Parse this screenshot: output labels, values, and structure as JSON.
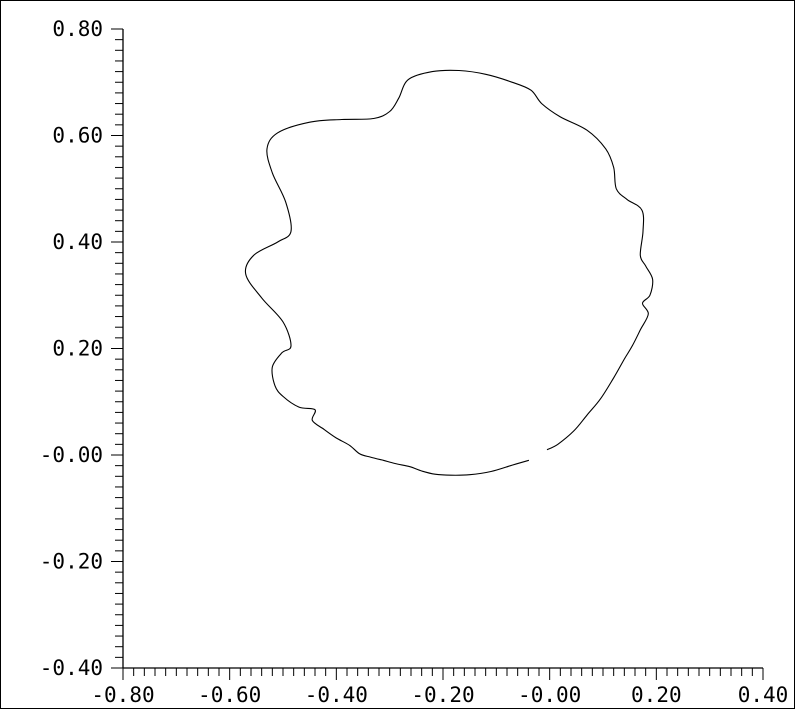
{
  "chart_data": {
    "type": "line",
    "title": "",
    "xlabel": "",
    "ylabel": "",
    "xlim": [
      -0.8,
      0.4
    ],
    "ylim": [
      -0.4,
      0.8
    ],
    "grid": false,
    "x_tick_labels": [
      "-0.80",
      "-0.60",
      "-0.40",
      "-0.20",
      "-0.00",
      "0.20",
      "0.40"
    ],
    "y_tick_labels": [
      "0.80",
      "0.60",
      "0.40",
      "0.20",
      "-0.00",
      "-0.20",
      "-0.40"
    ],
    "x_ticks": [
      -0.8,
      -0.6,
      -0.4,
      -0.2,
      0.0,
      0.2,
      0.4
    ],
    "y_ticks": [
      0.8,
      0.6,
      0.4,
      0.2,
      0.0,
      -0.2,
      -0.4
    ],
    "minor_tick_step": 0.02,
    "series": [
      {
        "points": [
          [
            -0.039,
            -0.01
          ],
          [
            -0.07,
            -0.019
          ],
          [
            -0.11,
            -0.031
          ],
          [
            -0.15,
            -0.037
          ],
          [
            -0.185,
            -0.038
          ],
          [
            -0.215,
            -0.036
          ],
          [
            -0.24,
            -0.03
          ],
          [
            -0.262,
            -0.022
          ],
          [
            -0.29,
            -0.016
          ],
          [
            -0.312,
            -0.01
          ],
          [
            -0.336,
            -0.004
          ],
          [
            -0.356,
            0.002
          ],
          [
            -0.375,
            0.018
          ],
          [
            -0.4,
            0.032
          ],
          [
            -0.423,
            0.048
          ],
          [
            -0.445,
            0.065
          ],
          [
            -0.44,
            0.085
          ],
          [
            -0.47,
            0.09
          ],
          [
            -0.5,
            0.11
          ],
          [
            -0.515,
            0.13
          ],
          [
            -0.52,
            0.165
          ],
          [
            -0.502,
            0.192
          ],
          [
            -0.485,
            0.205
          ],
          [
            -0.5,
            0.25
          ],
          [
            -0.54,
            0.295
          ],
          [
            -0.57,
            0.34
          ],
          [
            -0.555,
            0.375
          ],
          [
            -0.51,
            0.4
          ],
          [
            -0.485,
            0.42
          ],
          [
            -0.495,
            0.475
          ],
          [
            -0.52,
            0.53
          ],
          [
            -0.53,
            0.575
          ],
          [
            -0.51,
            0.605
          ],
          [
            -0.45,
            0.625
          ],
          [
            -0.39,
            0.63
          ],
          [
            -0.33,
            0.632
          ],
          [
            -0.3,
            0.645
          ],
          [
            -0.283,
            0.67
          ],
          [
            -0.265,
            0.705
          ],
          [
            -0.22,
            0.72
          ],
          [
            -0.17,
            0.722
          ],
          [
            -0.12,
            0.715
          ],
          [
            -0.07,
            0.7
          ],
          [
            -0.035,
            0.685
          ],
          [
            -0.015,
            0.66
          ],
          [
            0.02,
            0.635
          ],
          [
            0.07,
            0.61
          ],
          [
            0.105,
            0.575
          ],
          [
            0.12,
            0.54
          ],
          [
            0.125,
            0.5
          ],
          [
            0.145,
            0.48
          ],
          [
            0.173,
            0.46
          ],
          [
            0.175,
            0.42
          ],
          [
            0.17,
            0.375
          ],
          [
            0.18,
            0.355
          ],
          [
            0.193,
            0.33
          ],
          [
            0.188,
            0.3
          ],
          [
            0.174,
            0.285
          ],
          [
            0.185,
            0.265
          ],
          [
            0.17,
            0.235
          ],
          [
            0.155,
            0.205
          ],
          [
            0.14,
            0.18
          ],
          [
            0.12,
            0.145
          ],
          [
            0.095,
            0.105
          ],
          [
            0.07,
            0.075
          ],
          [
            0.045,
            0.045
          ],
          [
            0.015,
            0.02
          ],
          [
            -0.005,
            0.01
          ]
        ]
      }
    ]
  }
}
